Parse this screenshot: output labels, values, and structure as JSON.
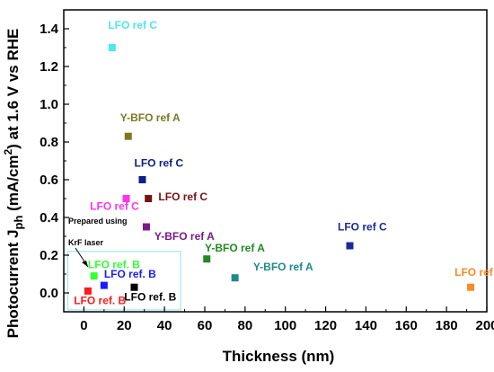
{
  "chart_data": {
    "type": "scatter",
    "title": "",
    "xlabel": "Thickness (nm)",
    "ylabel": {
      "pre": "Photocurrent J",
      "sub": "ph",
      "mid": " (mA/cm",
      "sup": "2",
      "post": ") at 1.6 V vs RHE"
    },
    "xlim": [
      -10,
      200
    ],
    "ylim": [
      -0.1,
      1.5
    ],
    "xticks": [
      0,
      20,
      40,
      60,
      80,
      100,
      120,
      140,
      160,
      180,
      200
    ],
    "yticks": [
      0.0,
      0.2,
      0.4,
      0.6,
      0.8,
      1.0,
      1.2,
      1.4
    ],
    "ytick_labels": [
      "0.0",
      "0.2",
      "0.4",
      "0.6",
      "0.8",
      "1.0",
      "1.2",
      "1.4"
    ],
    "grid": false,
    "points": [
      {
        "x": 14,
        "y": 1.3,
        "label": "LFO ref C",
        "color": "#4de8f0",
        "lx": 12,
        "ly": 1.4,
        "anchor": "start"
      },
      {
        "x": 22,
        "y": 0.83,
        "label": "Y-BFO ref A",
        "color": "#7a7a20",
        "lx": 18,
        "ly": 0.91,
        "anchor": "start"
      },
      {
        "x": 29,
        "y": 0.6,
        "label": "LFO ref C",
        "color": "#0a1e8c",
        "lx": 25,
        "ly": 0.67,
        "anchor": "start"
      },
      {
        "x": 21,
        "y": 0.5,
        "label": "LFO ref C",
        "color": "#ff33ee",
        "lx": 3,
        "ly": 0.44,
        "anchor": "start"
      },
      {
        "x": 32,
        "y": 0.5,
        "label": "LFO ref C",
        "color": "#7a1010",
        "lx": 37,
        "ly": 0.49,
        "anchor": "start"
      },
      {
        "x": 31,
        "y": 0.35,
        "label": "Y-BFO ref A",
        "color": "#7a1a8c",
        "lx": 35,
        "ly": 0.28,
        "anchor": "start"
      },
      {
        "x": 61,
        "y": 0.18,
        "label": "Y-BFO ref A",
        "color": "#218a21",
        "lx": 60,
        "ly": 0.22,
        "anchor": "start"
      },
      {
        "x": 75,
        "y": 0.08,
        "label": "Y-BFO ref A",
        "color": "#1e8a8a",
        "lx": 84,
        "ly": 0.12,
        "anchor": "start"
      },
      {
        "x": 132,
        "y": 0.25,
        "label": "LFO ref C",
        "color": "#1a2a9a",
        "lx": 126,
        "ly": 0.33,
        "anchor": "start"
      },
      {
        "x": 192,
        "y": 0.03,
        "label": "LFO ref C",
        "color": "#ff8822",
        "lx": 184,
        "ly": 0.09,
        "anchor": "start"
      },
      {
        "x": 5,
        "y": 0.09,
        "label": "LFO ref. B",
        "color": "#33ff33",
        "lx": 2,
        "ly": 0.13,
        "anchor": "start"
      },
      {
        "x": 10,
        "y": 0.04,
        "label": "LFO ref. B",
        "color": "#1a1aff",
        "lx": 10,
        "ly": 0.08,
        "anchor": "start"
      },
      {
        "x": 2,
        "y": 0.01,
        "label": "LFO ref. B",
        "color": "#ff1a1a",
        "lx": -5,
        "ly": -0.06,
        "anchor": "start"
      },
      {
        "x": 25,
        "y": 0.03,
        "label": "LFO ref. B",
        "color": "#000000",
        "lx": 20,
        "ly": -0.04,
        "anchor": "start"
      }
    ],
    "annotations": [
      "Prepared using",
      "KrF laser"
    ],
    "highlight_box": {
      "x0": -8,
      "x1": 48,
      "y0": -0.09,
      "y1": 0.22,
      "color": "#9ee6ee"
    }
  }
}
